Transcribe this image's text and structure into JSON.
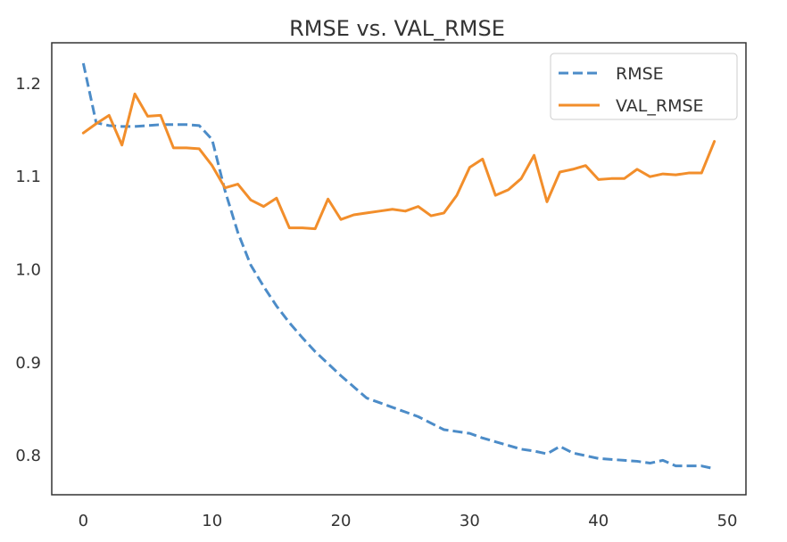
{
  "chart_data": {
    "type": "line",
    "title": "RMSE vs. VAL_RMSE",
    "xlabel": "",
    "ylabel": "",
    "xlim": [
      -2.45,
      51.45
    ],
    "ylim": [
      0.758,
      1.244
    ],
    "xticks": [
      0,
      10,
      20,
      30,
      40,
      50
    ],
    "yticks": [
      0.8,
      0.9,
      1.0,
      1.1,
      1.2
    ],
    "ytick_labels": [
      "0.8",
      "0.9",
      "1.0",
      "1.1",
      "1.2"
    ],
    "grid": false,
    "legend_position": "top-right",
    "x": [
      0,
      1,
      2,
      3,
      4,
      5,
      6,
      7,
      8,
      9,
      10,
      11,
      12,
      13,
      14,
      15,
      16,
      17,
      18,
      19,
      20,
      21,
      22,
      23,
      24,
      25,
      26,
      27,
      28,
      29,
      30,
      31,
      32,
      33,
      34,
      35,
      36,
      37,
      38,
      39,
      40,
      41,
      42,
      43,
      44,
      45,
      46,
      47,
      48,
      49
    ],
    "series": [
      {
        "name": "RMSE",
        "color": "#4c8cc8",
        "style": "dashed",
        "values": [
          1.222,
          1.158,
          1.155,
          1.154,
          1.154,
          1.155,
          1.156,
          1.156,
          1.156,
          1.155,
          1.14,
          1.085,
          1.04,
          1.005,
          0.982,
          0.961,
          0.943,
          0.927,
          0.912,
          0.899,
          0.886,
          0.874,
          0.862,
          0.857,
          0.852,
          0.847,
          0.842,
          0.835,
          0.828,
          0.826,
          0.824,
          0.819,
          0.815,
          0.811,
          0.807,
          0.805,
          0.802,
          0.81,
          0.803,
          0.8,
          0.797,
          0.796,
          0.795,
          0.794,
          0.792,
          0.795,
          0.789,
          0.789,
          0.789,
          0.786
        ]
      },
      {
        "name": "VAL_RMSE",
        "color": "#f28e2b",
        "style": "solid",
        "values": [
          1.147,
          1.157,
          1.166,
          1.134,
          1.189,
          1.165,
          1.166,
          1.131,
          1.131,
          1.13,
          1.112,
          1.088,
          1.092,
          1.075,
          1.068,
          1.077,
          1.045,
          1.045,
          1.044,
          1.076,
          1.054,
          1.059,
          1.061,
          1.063,
          1.065,
          1.063,
          1.068,
          1.058,
          1.061,
          1.08,
          1.11,
          1.119,
          1.08,
          1.086,
          1.098,
          1.123,
          1.073,
          1.105,
          1.108,
          1.112,
          1.097,
          1.098,
          1.098,
          1.108,
          1.1,
          1.103,
          1.102,
          1.104,
          1.104,
          1.138
        ]
      }
    ]
  }
}
